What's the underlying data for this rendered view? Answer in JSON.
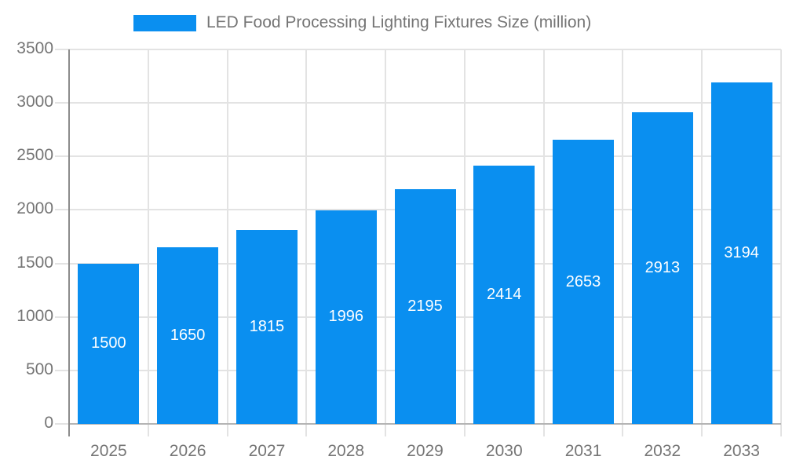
{
  "legend": {
    "label": "LED Food Processing Lighting Fixtures Size (million)"
  },
  "chart_data": {
    "type": "bar",
    "title": "LED Food Processing Lighting Fixtures Size (million)",
    "categories": [
      "2025",
      "2026",
      "2027",
      "2028",
      "2029",
      "2030",
      "2031",
      "2032",
      "2033"
    ],
    "values": [
      1500,
      1650,
      1815,
      1996,
      2195,
      2414,
      2653,
      2913,
      3194
    ],
    "value_labels_shown": true,
    "value_label_position": "inside-center",
    "xlabel": "",
    "ylabel": "",
    "ylim": [
      0,
      3500
    ],
    "y_ticks": [
      0,
      500,
      1000,
      1500,
      2000,
      2500,
      3000,
      3500
    ],
    "grid": true,
    "legend_position": "top"
  },
  "colors": {
    "bar": "#0a8ff0",
    "value_label": "#ffffff",
    "axis_text": "#757575",
    "gridline": "#e3e3e3",
    "y_axis_line": "#8c8c8c",
    "baseline": "#b4b4b4",
    "background": "#ffffff"
  }
}
